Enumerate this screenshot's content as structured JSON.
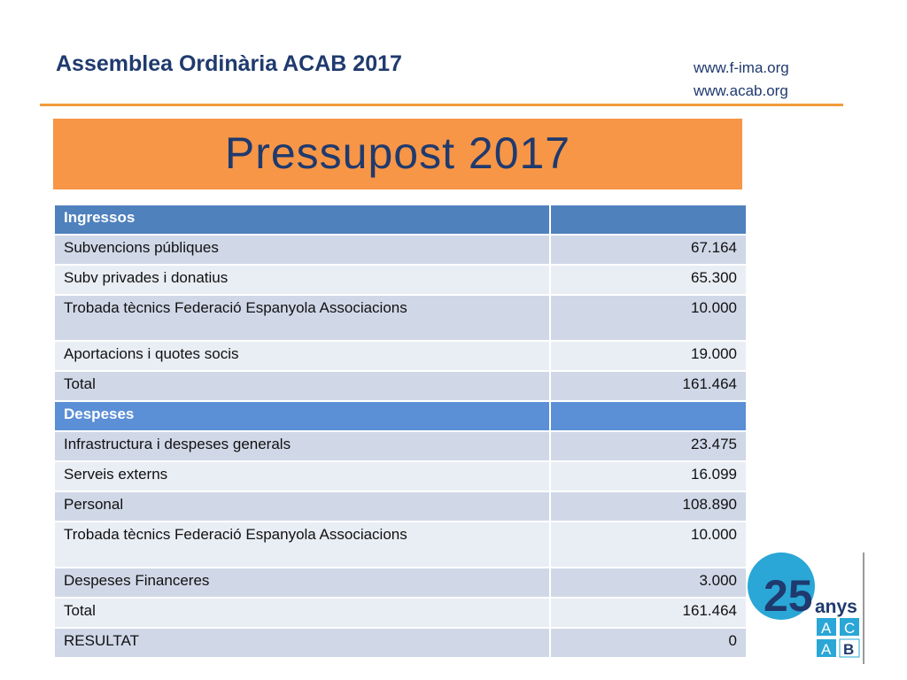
{
  "header": {
    "title": "Assemblea Ordinària ACAB 2017",
    "url1": "www.f-ima.org",
    "url2": "www.acab.org"
  },
  "banner": {
    "title": "Pressupost 2017"
  },
  "table": {
    "ingressos_header": "Ingressos",
    "ingressos": [
      {
        "label": "Subvencions públiques",
        "value": "67.164"
      },
      {
        "label": "Subv privades i donatius",
        "value": "65.300"
      },
      {
        "label": "Trobada tècnics Federació Espanyola Associacions",
        "value": "10.000"
      },
      {
        "label": "Aportacions i quotes socis",
        "value": "19.000"
      },
      {
        "label": "Total",
        "value": "161.464"
      }
    ],
    "despeses_header": "Despeses",
    "despeses": [
      {
        "label": "Infrastructura i despeses generals",
        "value": "23.475"
      },
      {
        "label": "Serveis externs",
        "value": "16.099"
      },
      {
        "label": "Personal",
        "value": "108.890"
      },
      {
        "label": "Trobada tècnics Federació Espanyola Associacions",
        "value": "10.000"
      },
      {
        "label": "Despeses Financeres",
        "value": "3.000"
      },
      {
        "label": "Total",
        "value": "161.464"
      }
    ],
    "resultat": {
      "label": "RESULTAT",
      "value": "0"
    }
  },
  "logo": {
    "number": "25",
    "word": "anys",
    "letters": [
      "A",
      "C",
      "A",
      "B"
    ],
    "colors": {
      "circle": "#2aa7d6",
      "box": "#2aa7d6",
      "dark": "#1f3a6e"
    }
  }
}
